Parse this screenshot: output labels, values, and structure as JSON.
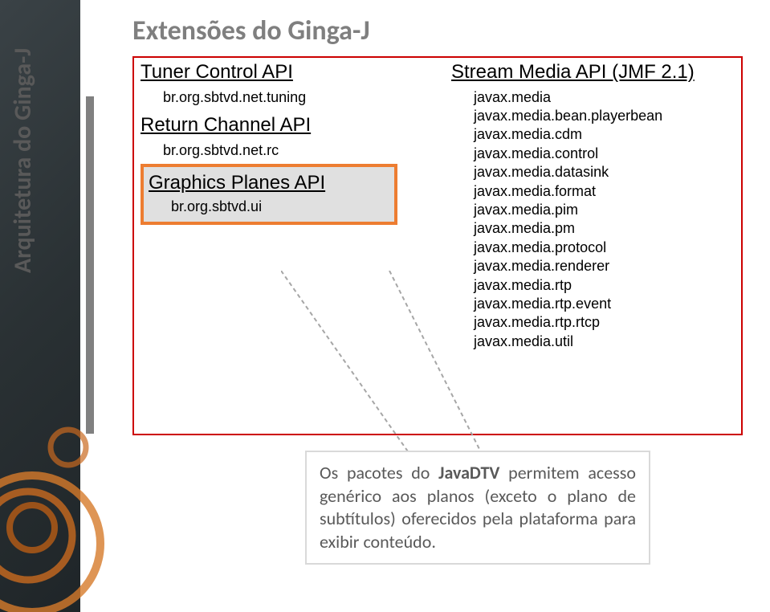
{
  "sidebar_title": "Arquitetura do Ginga-J",
  "title": "Extensões do Ginga-J",
  "colors": {
    "diagram_border": "#cc0000",
    "highlight_border": "#ed7d31",
    "highlight_bg": "#e0e0e0",
    "sidebar_start": "#3a4246",
    "sidebar_end": "#1f2528",
    "vbar": "#808080",
    "title_color": "#7f7f7f",
    "circle_outer": "#d67a2a",
    "circle_mid": "#c96a1f",
    "circle_inner": "#b85c15",
    "callout_border": "#d9d9d9"
  },
  "left_apis": [
    {
      "title": "Tuner Control API",
      "pkg": "br.org.sbtvd.net.tuning"
    },
    {
      "title": "Return Channel API",
      "pkg": "br.org.sbtvd.net.rc"
    }
  ],
  "highlighted_api": {
    "title": "Graphics Planes API",
    "pkg": "br.org.sbtvd.ui"
  },
  "right_api_title": "Stream Media API (JMF 2.1)",
  "right_packages": [
    "javax.media",
    "javax.media.bean.playerbean",
    "javax.media.cdm",
    "javax.media.control",
    "javax.media.datasink",
    "javax.media.format",
    "javax.media.pim",
    "javax.media.pm",
    "javax.media.protocol",
    "javax.media.renderer",
    "javax.media.rtp",
    "javax.media.rtp.event",
    "javax.media.rtp.rtcp",
    "javax.media.util"
  ],
  "callout_prefix": "Os pacotes do ",
  "callout_bold": "JavaDTV",
  "callout_rest": " permitem acesso genérico aos planos (exceto o plano de subtítulos) oferecidos pela plataforma para exibir conteúdo."
}
